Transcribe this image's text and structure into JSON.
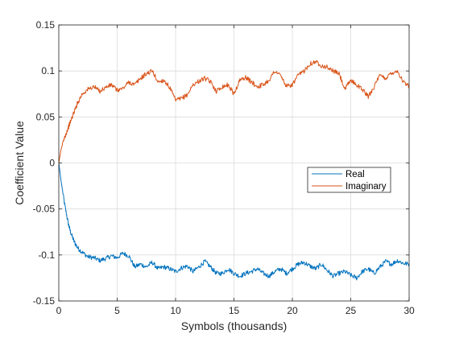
{
  "chart_data": {
    "type": "line",
    "title": "",
    "xlabel": "Symbols (thousands)",
    "ylabel": "Coefficient Value",
    "xlim": [
      0,
      30
    ],
    "ylim": [
      -0.15,
      0.15
    ],
    "xticks": [
      0,
      5,
      10,
      15,
      20,
      25,
      30
    ],
    "xtick_labels": [
      "0",
      "5",
      "10",
      "15",
      "20",
      "25",
      "30"
    ],
    "yticks": [
      -0.15,
      -0.1,
      -0.05,
      0,
      0.05,
      0.1,
      0.15
    ],
    "ytick_labels": [
      "-0.15",
      "-0.1",
      "-0.05",
      "0",
      "0.05",
      "0.1",
      "0.15"
    ],
    "grid": true,
    "legend_position": "right",
    "series": [
      {
        "name": "Real",
        "color": "#0072BD",
        "x": [
          0,
          0.2,
          0.5,
          0.8,
          1.0,
          1.3,
          1.6,
          2.0,
          2.5,
          3.0,
          3.5,
          4.0,
          4.5,
          5.0,
          5.5,
          6.0,
          6.5,
          7.0,
          7.5,
          8.0,
          8.5,
          9.0,
          9.5,
          10.0,
          10.5,
          11.0,
          11.5,
          12.0,
          12.5,
          13.0,
          13.5,
          14.0,
          14.5,
          15.0,
          15.5,
          16.0,
          16.5,
          17.0,
          17.5,
          18.0,
          18.5,
          19.0,
          19.5,
          20.0,
          20.5,
          21.0,
          21.5,
          22.0,
          22.5,
          23.0,
          23.5,
          24.0,
          24.5,
          25.0,
          25.5,
          26.0,
          26.5,
          27.0,
          27.5,
          28.0,
          28.5,
          29.0,
          29.5,
          30.0
        ],
        "y": [
          0.0,
          -0.02,
          -0.045,
          -0.065,
          -0.075,
          -0.085,
          -0.092,
          -0.097,
          -0.102,
          -0.103,
          -0.106,
          -0.104,
          -0.101,
          -0.103,
          -0.098,
          -0.101,
          -0.113,
          -0.11,
          -0.113,
          -0.108,
          -0.115,
          -0.113,
          -0.115,
          -0.118,
          -0.114,
          -0.112,
          -0.118,
          -0.113,
          -0.107,
          -0.113,
          -0.12,
          -0.12,
          -0.115,
          -0.12,
          -0.123,
          -0.12,
          -0.118,
          -0.115,
          -0.12,
          -0.123,
          -0.118,
          -0.115,
          -0.12,
          -0.115,
          -0.11,
          -0.108,
          -0.112,
          -0.115,
          -0.11,
          -0.117,
          -0.123,
          -0.12,
          -0.118,
          -0.122,
          -0.125,
          -0.118,
          -0.115,
          -0.12,
          -0.113,
          -0.107,
          -0.11,
          -0.106,
          -0.109,
          -0.11
        ]
      },
      {
        "name": "Imaginary",
        "color": "#D95319",
        "x": [
          0,
          0.2,
          0.5,
          0.8,
          1.0,
          1.3,
          1.6,
          2.0,
          2.5,
          3.0,
          3.5,
          4.0,
          4.5,
          5.0,
          5.5,
          6.0,
          6.5,
          7.0,
          7.5,
          8.0,
          8.5,
          9.0,
          9.5,
          10.0,
          10.5,
          11.0,
          11.5,
          12.0,
          12.5,
          13.0,
          13.5,
          14.0,
          14.5,
          15.0,
          15.5,
          16.0,
          16.5,
          17.0,
          17.5,
          18.0,
          18.5,
          19.0,
          19.5,
          20.0,
          20.5,
          21.0,
          21.5,
          22.0,
          22.5,
          23.0,
          23.5,
          24.0,
          24.5,
          25.0,
          25.5,
          26.0,
          26.5,
          27.0,
          27.5,
          28.0,
          28.5,
          29.0,
          29.5,
          30.0
        ],
        "y": [
          0.0,
          0.015,
          0.028,
          0.038,
          0.045,
          0.055,
          0.065,
          0.075,
          0.08,
          0.083,
          0.078,
          0.082,
          0.085,
          0.079,
          0.081,
          0.088,
          0.085,
          0.092,
          0.097,
          0.1,
          0.088,
          0.09,
          0.082,
          0.068,
          0.07,
          0.074,
          0.085,
          0.089,
          0.092,
          0.088,
          0.078,
          0.083,
          0.085,
          0.075,
          0.09,
          0.093,
          0.088,
          0.083,
          0.085,
          0.09,
          0.1,
          0.095,
          0.083,
          0.085,
          0.095,
          0.1,
          0.108,
          0.11,
          0.106,
          0.104,
          0.1,
          0.097,
          0.08,
          0.09,
          0.085,
          0.08,
          0.072,
          0.083,
          0.095,
          0.092,
          0.098,
          0.1,
          0.088,
          0.083
        ]
      }
    ]
  }
}
